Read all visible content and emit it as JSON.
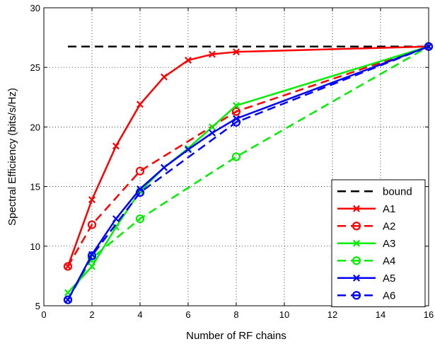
{
  "chart_data": {
    "type": "line",
    "title": "",
    "xlabel": "Number of RF chains",
    "ylabel": "Spectral Efficiency (bits/s/Hz)",
    "xlim": [
      0,
      16
    ],
    "ylim": [
      5,
      30
    ],
    "xticks": [
      0,
      2,
      4,
      6,
      8,
      10,
      12,
      14,
      16
    ],
    "yticks": [
      5,
      10,
      15,
      20,
      25,
      30
    ],
    "grid": true,
    "legend_position": "bottom-right",
    "series": [
      {
        "name": "bound",
        "color": "#000000",
        "style": "dashed",
        "marker": "none",
        "x": [
          1,
          16
        ],
        "y": [
          26.75,
          26.75
        ]
      },
      {
        "name": "A1",
        "color": "#ff0000",
        "style": "solid",
        "marker": "x",
        "x": [
          1,
          2,
          3,
          4,
          5,
          6,
          7,
          8,
          16
        ],
        "y": [
          8.3,
          13.9,
          18.4,
          21.9,
          24.2,
          25.6,
          26.1,
          26.3,
          26.75
        ]
      },
      {
        "name": "A2",
        "color": "#ff0000",
        "style": "dashed",
        "marker": "o",
        "x": [
          1,
          2,
          4,
          8,
          16
        ],
        "y": [
          8.3,
          11.8,
          16.3,
          21.3,
          26.75
        ]
      },
      {
        "name": "A3",
        "color": "#00ee00",
        "style": "solid",
        "marker": "x",
        "x": [
          1,
          2,
          3,
          4,
          5,
          6,
          7,
          8,
          16
        ],
        "y": [
          6.1,
          8.3,
          11.6,
          14.6,
          16.6,
          18.2,
          20.0,
          21.8,
          26.75
        ]
      },
      {
        "name": "A4",
        "color": "#00ee00",
        "style": "dashed",
        "marker": "o",
        "x": [
          1,
          2,
          4,
          8,
          16
        ],
        "y": [
          5.5,
          9.0,
          12.3,
          17.5,
          26.75
        ]
      },
      {
        "name": "A5",
        "color": "#0000ff",
        "style": "solid",
        "marker": "x",
        "x": [
          1,
          2,
          3,
          4,
          5,
          6,
          7,
          8,
          16
        ],
        "y": [
          5.5,
          9.3,
          12.3,
          14.8,
          16.6,
          18.1,
          19.5,
          20.7,
          26.75
        ]
      },
      {
        "name": "A6",
        "color": "#0000ff",
        "style": "dashed",
        "marker": "o",
        "x": [
          1,
          2,
          4,
          8,
          16
        ],
        "y": [
          5.5,
          9.2,
          14.5,
          20.4,
          26.75
        ]
      }
    ]
  }
}
